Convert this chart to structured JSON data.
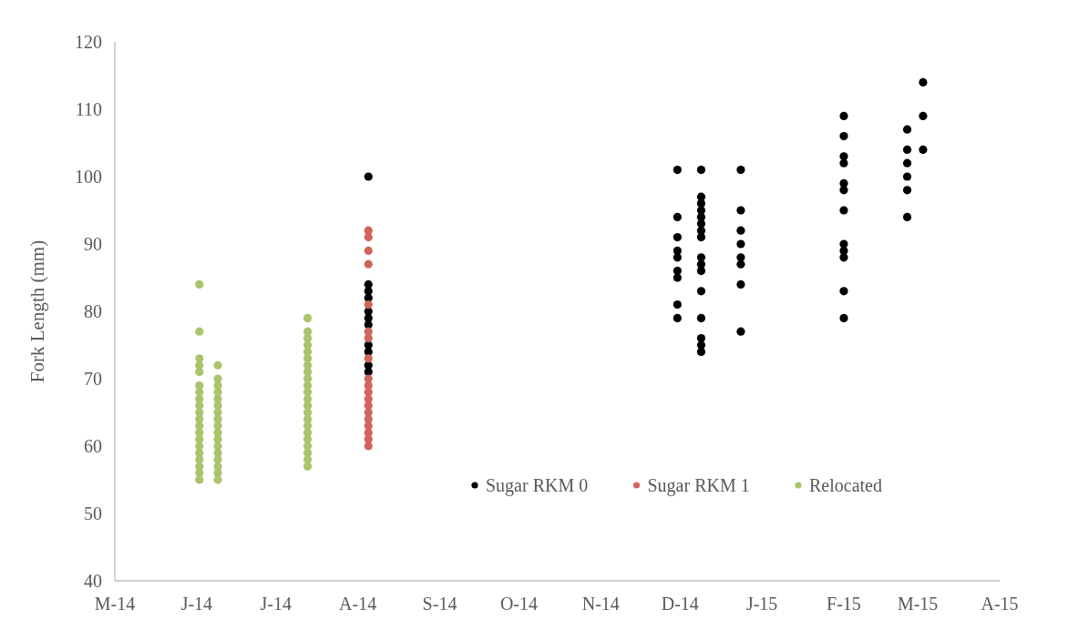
{
  "chart_data": {
    "type": "scatter",
    "ylabel": "Fork Length (mm)",
    "xlim": [
      "2014-05-01",
      "2015-04-01"
    ],
    "xticks": [
      {
        "value": "2014-05-01",
        "label": "M-14"
      },
      {
        "value": "2014-06-01",
        "label": "J-14"
      },
      {
        "value": "2014-07-01",
        "label": "J-14"
      },
      {
        "value": "2014-08-01",
        "label": "A-14"
      },
      {
        "value": "2014-09-01",
        "label": "S-14"
      },
      {
        "value": "2014-10-01",
        "label": "O-14"
      },
      {
        "value": "2014-11-01",
        "label": "N-14"
      },
      {
        "value": "2014-12-01",
        "label": "D-14"
      },
      {
        "value": "2015-01-01",
        "label": "J-15"
      },
      {
        "value": "2015-02-01",
        "label": "F-15"
      },
      {
        "value": "2015-03-01",
        "label": "M-15"
      },
      {
        "value": "2015-04-01",
        "label": "A-15"
      }
    ],
    "ylim": [
      40,
      120
    ],
    "yticks": [
      40,
      50,
      60,
      70,
      80,
      90,
      100,
      110,
      120
    ],
    "grid": false,
    "legend": "bottom",
    "marker": "circle",
    "series": [
      {
        "name": "Sugar RKM 0",
        "color": "#000000",
        "x": [
          "2014-08-05",
          "2014-08-05",
          "2014-08-05",
          "2014-08-05",
          "2014-08-05",
          "2014-08-05",
          "2014-08-05",
          "2014-08-05",
          "2014-08-05",
          "2014-08-05",
          "2014-08-05",
          "2014-11-30",
          "2014-11-30",
          "2014-11-30",
          "2014-11-30",
          "2014-11-30",
          "2014-11-30",
          "2014-11-30",
          "2014-11-30",
          "2014-11-30",
          "2014-12-09",
          "2014-12-09",
          "2014-12-09",
          "2014-12-09",
          "2014-12-09",
          "2014-12-09",
          "2014-12-09",
          "2014-12-09",
          "2014-12-09",
          "2014-12-09",
          "2014-12-09",
          "2014-12-09",
          "2014-12-09",
          "2014-12-09",
          "2014-12-09",
          "2014-12-09",
          "2014-12-24",
          "2014-12-24",
          "2014-12-24",
          "2014-12-24",
          "2014-12-24",
          "2014-12-24",
          "2014-12-24",
          "2014-12-24",
          "2015-02-01",
          "2015-02-01",
          "2015-02-01",
          "2015-02-01",
          "2015-02-01",
          "2015-02-01",
          "2015-02-01",
          "2015-02-01",
          "2015-02-01",
          "2015-02-01",
          "2015-02-01",
          "2015-02-01",
          "2015-02-25",
          "2015-02-25",
          "2015-02-25",
          "2015-02-25",
          "2015-02-25",
          "2015-02-25",
          "2015-03-03",
          "2015-03-03",
          "2015-03-03"
        ],
        "values": [
          100,
          84,
          83,
          82,
          80,
          79,
          78,
          75,
          74,
          72,
          71,
          101,
          94,
          91,
          89,
          88,
          86,
          85,
          81,
          79,
          101,
          97,
          96,
          95,
          94,
          93,
          92,
          91,
          88,
          87,
          86,
          83,
          79,
          76,
          75,
          74,
          101,
          95,
          92,
          90,
          88,
          87,
          84,
          77,
          109,
          106,
          103,
          102,
          99,
          98,
          95,
          90,
          89,
          88,
          83,
          79,
          107,
          104,
          102,
          100,
          98,
          94,
          114,
          109,
          104
        ]
      },
      {
        "name": "Sugar RKM 1",
        "color": "#d0655c",
        "x": [
          "2014-08-05",
          "2014-08-05",
          "2014-08-05",
          "2014-08-05",
          "2014-08-05",
          "2014-08-05",
          "2014-08-05",
          "2014-08-05",
          "2014-08-05",
          "2014-08-05",
          "2014-08-05",
          "2014-08-05",
          "2014-08-05",
          "2014-08-05",
          "2014-08-05",
          "2014-08-05",
          "2014-08-05",
          "2014-08-05",
          "2014-08-05"
        ],
        "values": [
          92,
          91,
          89,
          87,
          81,
          77,
          76,
          73,
          70,
          69,
          68,
          67,
          66,
          65,
          64,
          63,
          62,
          61,
          60
        ]
      },
      {
        "name": "Relocated",
        "color": "#a9c46b",
        "x": [
          "2014-06-02",
          "2014-06-02",
          "2014-06-02",
          "2014-06-02",
          "2014-06-02",
          "2014-06-02",
          "2014-06-02",
          "2014-06-02",
          "2014-06-02",
          "2014-06-02",
          "2014-06-02",
          "2014-06-02",
          "2014-06-02",
          "2014-06-02",
          "2014-06-02",
          "2014-06-02",
          "2014-06-02",
          "2014-06-02",
          "2014-06-02",
          "2014-06-02",
          "2014-06-09",
          "2014-06-09",
          "2014-06-09",
          "2014-06-09",
          "2014-06-09",
          "2014-06-09",
          "2014-06-09",
          "2014-06-09",
          "2014-06-09",
          "2014-06-09",
          "2014-06-09",
          "2014-06-09",
          "2014-06-09",
          "2014-06-09",
          "2014-06-09",
          "2014-06-09",
          "2014-06-09",
          "2014-07-13",
          "2014-07-13",
          "2014-07-13",
          "2014-07-13",
          "2014-07-13",
          "2014-07-13",
          "2014-07-13",
          "2014-07-13",
          "2014-07-13",
          "2014-07-13",
          "2014-07-13",
          "2014-07-13",
          "2014-07-13",
          "2014-07-13",
          "2014-07-13",
          "2014-07-13",
          "2014-07-13",
          "2014-07-13",
          "2014-07-13",
          "2014-07-13",
          "2014-07-13",
          "2014-07-13"
        ],
        "values": [
          84,
          77,
          73,
          72,
          71,
          69,
          68,
          67,
          66,
          65,
          64,
          63,
          62,
          61,
          60,
          59,
          58,
          57,
          56,
          55,
          72,
          70,
          69,
          68,
          67,
          66,
          65,
          64,
          63,
          62,
          61,
          60,
          59,
          58,
          57,
          56,
          55,
          79,
          77,
          76,
          75,
          74,
          73,
          72,
          71,
          70,
          69,
          68,
          67,
          66,
          65,
          64,
          63,
          62,
          61,
          60,
          59,
          58,
          57
        ]
      }
    ]
  }
}
